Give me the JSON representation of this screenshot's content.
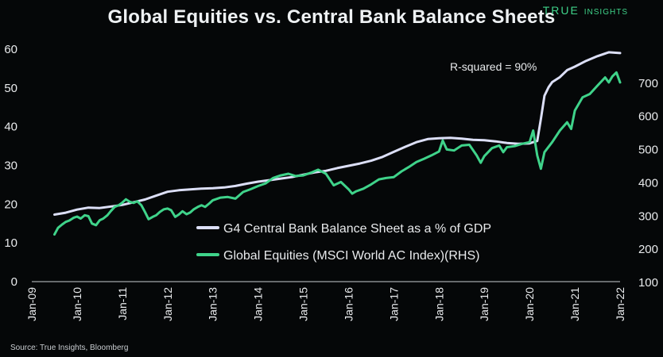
{
  "title": "Global Equities vs. Central Bank Balance Sheets",
  "brand": {
    "word1": "TRUE",
    "word2": "INSIGHTS"
  },
  "source": "Source: True Insights, Bloomberg",
  "annotation": "R-squared = 90%",
  "colors": {
    "background": "#050708",
    "balance_sheet": "#dcdff7",
    "equities": "#3fd38a",
    "brand": "#3fd38a",
    "text": "#e8eaec"
  },
  "chart_data": {
    "type": "line",
    "title": "Global Equities vs. Central Bank Balance Sheets",
    "grid": false,
    "legend_placement": "center",
    "x_tick_labels": [
      "Jan-09",
      "Jan-10",
      "Jan-11",
      "Jan-12",
      "Jan-13",
      "Jan-14",
      "Jan-15",
      "Jan-16",
      "Jan-17",
      "Jan-18",
      "Jan-19",
      "Jan-20",
      "Jan-21",
      "Jan-22"
    ],
    "xlim": [
      2009.0,
      2022.0
    ],
    "ylim_left": [
      0,
      60
    ],
    "y_left_ticks": [
      0,
      10,
      20,
      30,
      40,
      50,
      60
    ],
    "ylim_right": [
      100,
      800
    ],
    "y_right_ticks": [
      100,
      200,
      300,
      400,
      500,
      600,
      700
    ],
    "series": [
      {
        "name": "G4 Central Bank Balance Sheet as a % of GDP",
        "axis": "left",
        "x": [
          2009.5,
          2009.75,
          2010.0,
          2010.25,
          2010.5,
          2010.75,
          2011.0,
          2011.25,
          2011.5,
          2011.75,
          2012.0,
          2012.25,
          2012.5,
          2012.75,
          2013.0,
          2013.25,
          2013.5,
          2013.75,
          2014.0,
          2014.25,
          2014.5,
          2014.75,
          2015.0,
          2015.25,
          2015.5,
          2015.75,
          2016.0,
          2016.25,
          2016.5,
          2016.75,
          2017.0,
          2017.25,
          2017.5,
          2017.75,
          2018.0,
          2018.25,
          2018.5,
          2018.75,
          2019.0,
          2019.25,
          2019.5,
          2019.75,
          2020.0,
          2020.08,
          2020.17,
          2020.25,
          2020.33,
          2020.42,
          2020.5,
          2020.67,
          2020.83,
          2021.0,
          2021.25,
          2021.5,
          2021.75,
          2022.0
        ],
        "values": [
          17.3,
          17.8,
          18.6,
          19.1,
          19.0,
          19.4,
          19.8,
          20.5,
          21.2,
          22.2,
          23.2,
          23.6,
          23.8,
          24.0,
          24.1,
          24.3,
          24.7,
          25.3,
          25.8,
          26.2,
          26.6,
          27.0,
          27.6,
          28.2,
          28.6,
          29.3,
          29.9,
          30.5,
          31.2,
          32.2,
          33.5,
          34.8,
          36.0,
          36.8,
          37.0,
          37.1,
          36.9,
          36.6,
          36.5,
          36.2,
          35.8,
          35.6,
          35.7,
          36.0,
          36.3,
          42.0,
          48.0,
          50.2,
          51.5,
          52.8,
          54.6,
          55.5,
          57.0,
          58.2,
          59.2,
          59.0
        ]
      },
      {
        "name": "Global Equities (MSCI World AC Index)(RHS)",
        "axis": "right",
        "x": [
          2009.5,
          2009.58,
          2009.67,
          2009.75,
          2009.83,
          2009.92,
          2010.0,
          2010.08,
          2010.17,
          2010.25,
          2010.33,
          2010.42,
          2010.5,
          2010.58,
          2010.67,
          2010.75,
          2010.83,
          2010.92,
          2011.0,
          2011.08,
          2011.17,
          2011.25,
          2011.33,
          2011.42,
          2011.5,
          2011.58,
          2011.67,
          2011.75,
          2011.83,
          2011.92,
          2012.0,
          2012.08,
          2012.17,
          2012.25,
          2012.33,
          2012.42,
          2012.5,
          2012.58,
          2012.67,
          2012.75,
          2012.83,
          2012.92,
          2013.0,
          2013.17,
          2013.33,
          2013.5,
          2013.67,
          2013.83,
          2014.0,
          2014.17,
          2014.33,
          2014.5,
          2014.67,
          2014.83,
          2015.0,
          2015.17,
          2015.33,
          2015.5,
          2015.67,
          2015.83,
          2016.0,
          2016.08,
          2016.17,
          2016.33,
          2016.5,
          2016.67,
          2016.83,
          2017.0,
          2017.17,
          2017.33,
          2017.5,
          2017.67,
          2017.83,
          2018.0,
          2018.08,
          2018.17,
          2018.33,
          2018.5,
          2018.67,
          2018.83,
          2018.92,
          2019.0,
          2019.17,
          2019.33,
          2019.42,
          2019.5,
          2019.67,
          2019.83,
          2020.0,
          2020.08,
          2020.17,
          2020.25,
          2020.33,
          2020.5,
          2020.67,
          2020.83,
          2020.92,
          2021.0,
          2021.17,
          2021.33,
          2021.5,
          2021.67,
          2021.75,
          2021.83,
          2021.92,
          2022.0
        ],
        "values": [
          242,
          262,
          272,
          280,
          284,
          292,
          296,
          290,
          300,
          297,
          275,
          270,
          285,
          290,
          300,
          313,
          325,
          330,
          338,
          348,
          340,
          337,
          342,
          330,
          310,
          288,
          295,
          300,
          310,
          318,
          320,
          315,
          295,
          302,
          312,
          303,
          308,
          318,
          325,
          330,
          325,
          335,
          345,
          353,
          355,
          350,
          370,
          378,
          388,
          396,
          412,
          420,
          425,
          418,
          420,
          428,
          437,
          425,
          390,
          400,
          378,
          365,
          372,
          380,
          393,
          408,
          412,
          415,
          432,
          445,
          460,
          470,
          480,
          492,
          525,
          498,
          495,
          510,
          512,
          480,
          458,
          478,
          502,
          510,
          490,
          505,
          508,
          515,
          520,
          555,
          480,
          440,
          490,
          520,
          555,
          580,
          560,
          615,
          655,
          665,
          690,
          715,
          700,
          718,
          730,
          700
        ]
      }
    ]
  }
}
